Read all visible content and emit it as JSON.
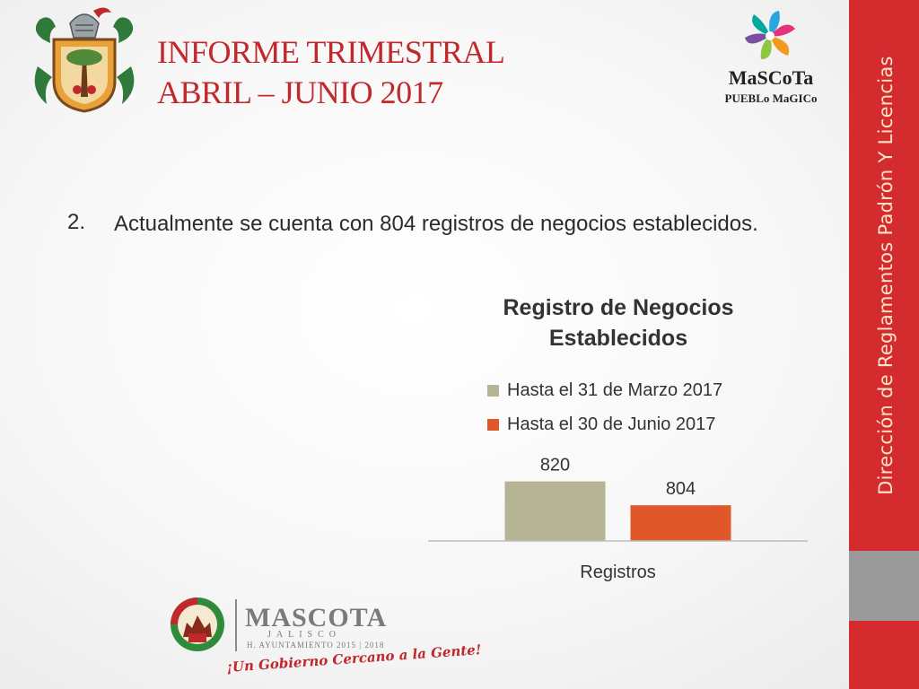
{
  "header": {
    "title_line1": "INFORME TRIMESTRAL",
    "title_line2": "ABRIL – JUNIO 2017",
    "logo_text_top": "MaSCoTa",
    "logo_text_bottom": "PUEBLo MaGICo"
  },
  "side_band": {
    "label": "Dirección de Reglamentos Padrón Y Licencias"
  },
  "content": {
    "bullet_number": "2.",
    "bullet_text": "Actualmente se cuenta con 804 registros de negocios establecidos."
  },
  "chart_data": {
    "type": "bar",
    "title": "Registro de Negocios Establecidos",
    "categories": [
      "Registros"
    ],
    "series": [
      {
        "name": "Hasta el 31 de Marzo 2017",
        "values": [
          820
        ],
        "color": "#b5b596"
      },
      {
        "name": "Hasta el 30 de Junio 2017",
        "values": [
          804
        ],
        "color": "#e0582a"
      }
    ],
    "data_labels": [
      "820",
      "804"
    ],
    "ylim": [
      780,
      830
    ],
    "xlabel": "",
    "ylabel": "",
    "legend_position": "top",
    "grid": false
  },
  "footer": {
    "name": "MASCOTA",
    "region": "JALISCO",
    "government": "H. AYUNTAMIENTO 2015 | 2018",
    "slogan": "¡Un Gobierno Cercano a la Gente!"
  }
}
